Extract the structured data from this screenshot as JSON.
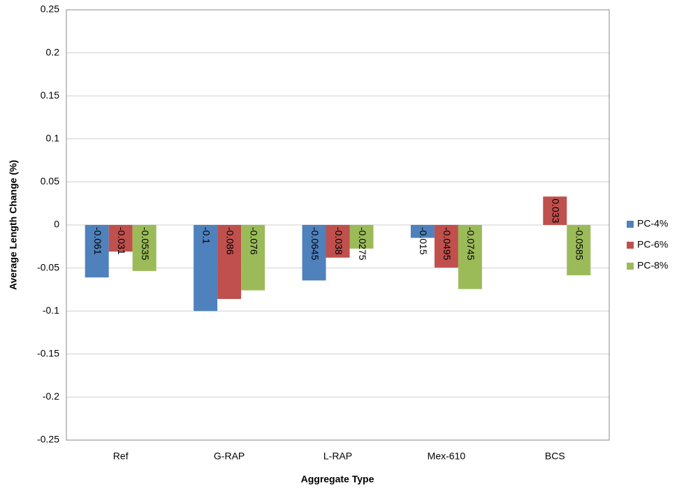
{
  "chart_data": {
    "type": "bar",
    "x_label": "Aggregate Type",
    "y_label": "Average Length Change (%)",
    "categories": [
      "Ref",
      "G-RAP",
      "L-RAP",
      "Mex-610",
      "BCS"
    ],
    "series": [
      {
        "name": "PC-4%",
        "color": "#4f81bd",
        "values": [
          -0.061,
          -0.1,
          -0.0645,
          -0.015,
          null
        ]
      },
      {
        "name": "PC-6%",
        "color": "#c0504d",
        "values": [
          -0.031,
          -0.086,
          -0.038,
          -0.0495,
          0.033
        ]
      },
      {
        "name": "PC-8%",
        "color": "#9bbb59",
        "values": [
          -0.0535,
          -0.076,
          -0.0275,
          -0.0745,
          -0.0585
        ]
      }
    ],
    "ylim": [
      -0.25,
      0.25
    ],
    "yticks": [
      -0.25,
      -0.2,
      -0.15,
      -0.1,
      -0.05,
      0,
      0.05,
      0.1,
      0.15,
      0.2,
      0.25
    ],
    "grid": true,
    "legend": "right"
  }
}
